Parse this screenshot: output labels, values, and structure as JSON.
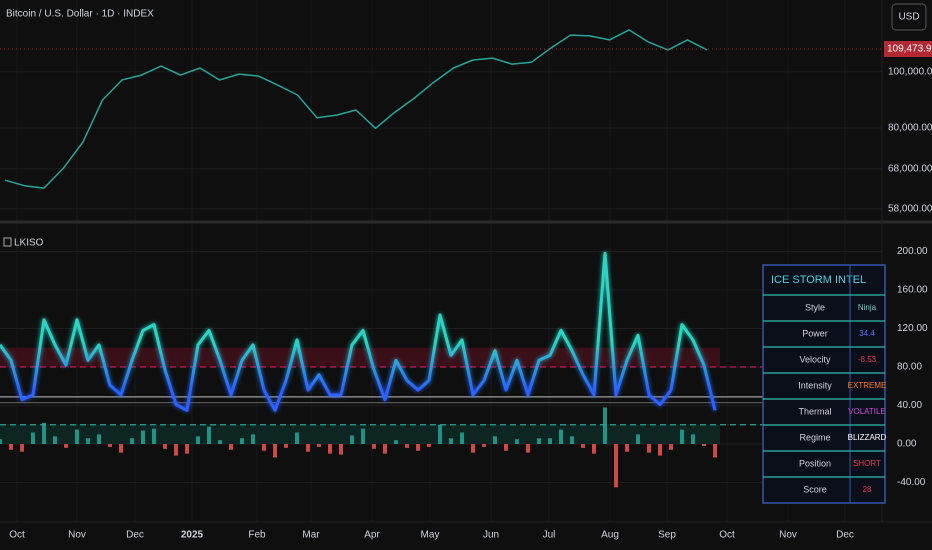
{
  "header": {
    "title": "Bitcoin / U.S. Dollar · 1D · INDEX",
    "currency": "USD"
  },
  "chart_data": [
    {
      "type": "line",
      "log_scale": true,
      "grid": true,
      "ylim": [
        55500,
        133000
      ],
      "yticks": [
        {
          "value": 58000,
          "label": "58,000.00"
        },
        {
          "value": 68000,
          "label": "68,000.00"
        },
        {
          "value": 80000,
          "label": "80,000.00"
        },
        {
          "value": 100000,
          "label": "100,000.00"
        }
      ],
      "series": [
        {
          "color": "#26a69a",
          "values": [
            65000,
            63600,
            63000,
            68200,
            75700,
            89400,
            96800,
            98700,
            102300,
            98700,
            101500,
            96800,
            99100,
            98300,
            94800,
            91200,
            83300,
            84200,
            85900,
            79900,
            85200,
            90100,
            96000,
            101500,
            104800,
            105600,
            103100,
            103900,
            109900,
            115700,
            115300,
            113500,
            118100,
            112500,
            109100,
            113500,
            109100
          ]
        }
      ],
      "last_price": {
        "value": 109473.92,
        "label": "109,473.92",
        "color": "#b22833"
      }
    },
    {
      "type": "line",
      "title": "LKISO",
      "grid": true,
      "ylim": [
        -81,
        227.5
      ],
      "yticks": [
        {
          "value": -40,
          "label": "-40.00"
        },
        {
          "value": 0,
          "label": "0.00"
        },
        {
          "value": 40,
          "label": "40.00"
        },
        {
          "value": 80,
          "label": "80.00"
        },
        {
          "value": 120,
          "label": "120.00"
        },
        {
          "value": 160,
          "label": "160.00"
        },
        {
          "value": 200,
          "label": "200.00"
        }
      ],
      "bands": [
        {
          "from": 80,
          "to": 100,
          "color": "#3a1018"
        },
        {
          "from": 0,
          "to": 20,
          "color": "#0d2622"
        }
      ],
      "levels": [
        {
          "value": 80,
          "color": "#c2185b",
          "dashed": true
        },
        {
          "value": 20,
          "color": "#26a69a",
          "dashed": true
        },
        {
          "value": 49,
          "color": "#9e9e9e",
          "dashed": false
        },
        {
          "value": 43,
          "color": "#555555",
          "dashed": false
        }
      ],
      "series": [
        {
          "color": "#2cd5c4",
          "color_low": "#2962ff",
          "values": [
            103,
            87,
            46,
            51,
            129,
            103,
            82,
            129,
            87,
            103,
            61,
            51,
            87,
            118,
            124,
            77,
            41,
            35,
            103,
            118,
            87,
            51,
            87,
            103,
            56,
            35,
            66,
            108,
            56,
            72,
            51,
            51,
            103,
            118,
            77,
            46,
            87,
            66,
            56,
            66,
            134,
            92,
            108,
            51,
            66,
            97,
            56,
            87,
            51,
            87,
            92,
            118,
            97,
            72,
            51,
            198,
            51,
            87,
            113,
            51,
            41,
            56,
            124,
            108,
            82,
            35
          ]
        }
      ],
      "bars": {
        "positive_color": "#26a69a",
        "negative_color": "#ef5350",
        "values": [
          5,
          -6,
          -8,
          12,
          22,
          8,
          -4,
          15,
          6,
          10,
          -3,
          -9,
          6,
          14,
          16,
          -5,
          -12,
          -10,
          8,
          18,
          4,
          -6,
          6,
          10,
          -7,
          -14,
          -4,
          12,
          -8,
          -3,
          -10,
          -11,
          9,
          16,
          -5,
          -10,
          4,
          -4,
          -7,
          -3,
          20,
          6,
          12,
          -9,
          -3,
          8,
          -7,
          5,
          -9,
          6,
          6,
          15,
          8,
          -4,
          -10,
          38,
          -45,
          -8,
          10,
          -9,
          -12,
          -6,
          15,
          10,
          -2,
          -14
        ]
      }
    }
  ],
  "x_axis": {
    "labels": [
      "Oct",
      "Nov",
      "Dec",
      "2025",
      "Feb",
      "Mar",
      "Apr",
      "May",
      "Jun",
      "Jul",
      "Aug",
      "Sep",
      "Oct",
      "Nov",
      "Dec"
    ]
  },
  "table": {
    "header": "ICE STORM INTEL",
    "rows": [
      {
        "label": "Style",
        "value": "Ninja",
        "color": "#80cbc4"
      },
      {
        "label": "Power",
        "value": "34.4",
        "color": "#5c6bff"
      },
      {
        "label": "Velocity",
        "value": "-8.53",
        "color": "#e53950"
      },
      {
        "label": "Intensity",
        "value": "EXTREME",
        "color": "#ff7a1a"
      },
      {
        "label": "Thermal",
        "value": "VOLATILE",
        "color": "#d04ed8"
      },
      {
        "label": "Regime",
        "value": "BLIZZARD",
        "color": "#ffffff"
      },
      {
        "label": "Position",
        "value": "SHORT",
        "color": "#e53950"
      },
      {
        "label": "Score",
        "value": "28",
        "color": "#e53950"
      }
    ]
  }
}
